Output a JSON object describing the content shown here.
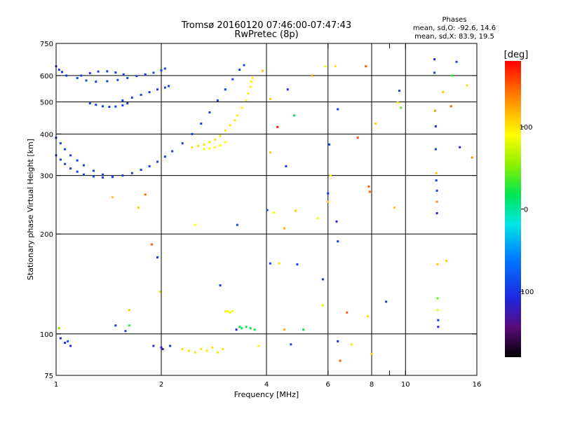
{
  "chart_data": {
    "type": "scatter",
    "title": "Tromsø 20160120 07:46:00-07:47:43",
    "subtitle": "RwPretec (8p)",
    "xlabel": "Frequency [MHz]",
    "ylabel": "Stationary phase Virtual Height [km]",
    "x_scale": "log",
    "y_scale": "log",
    "xlim": [
      1,
      16
    ],
    "ylim": [
      75,
      750
    ],
    "x_ticks": [
      {
        "value": 1,
        "label": "1"
      },
      {
        "value": 2,
        "label": "2"
      },
      {
        "value": 4,
        "label": "4"
      },
      {
        "value": 6,
        "label": "6"
      },
      {
        "value": 8,
        "label": "8"
      },
      {
        "value": 9,
        "label": ""
      },
      {
        "value": 10,
        "label": "10"
      },
      {
        "value": 16,
        "label": "16"
      }
    ],
    "y_ticks": [
      {
        "value": 75,
        "label": "75"
      },
      {
        "value": 100,
        "label": "100"
      },
      {
        "value": 200,
        "label": "200"
      },
      {
        "value": 300,
        "label": "300"
      },
      {
        "value": 400,
        "label": "400"
      },
      {
        "value": 500,
        "label": "500"
      },
      {
        "value": 600,
        "label": "600"
      },
      {
        "value": 750,
        "label": "750"
      }
    ],
    "x_grid": [
      2,
      4,
      6,
      8,
      10
    ],
    "y_grid": [
      100,
      200,
      300,
      400,
      500,
      600
    ],
    "stats": {
      "heading": "Phases",
      "line1": "mean, sd,O: -92.6, 14.6",
      "line2": "mean, sd,X:  83.9, 19.5"
    },
    "colorbar": {
      "unit": "[deg]",
      "range": [
        -180,
        180
      ],
      "ticks": [
        {
          "value": 100,
          "label": "100"
        },
        {
          "value": 0,
          "label": "0"
        },
        {
          "value": -100,
          "label": "-100"
        }
      ]
    },
    "traces": [
      {
        "phase": -95,
        "x": [
          1.0,
          1.03,
          1.06,
          1.1,
          1.15,
          1.2,
          1.28,
          1.36,
          1.45,
          1.55,
          1.65,
          1.75,
          1.85,
          1.95,
          2.05,
          2.15,
          2.3,
          2.45,
          2.6,
          2.75,
          2.9,
          3.05,
          3.2,
          3.35,
          3.45
        ],
        "y": [
          390,
          375,
          360,
          345,
          333,
          322,
          310,
          302,
          298,
          300,
          305,
          312,
          320,
          330,
          342,
          355,
          375,
          400,
          430,
          465,
          505,
          545,
          585,
          625,
          645
        ]
      },
      {
        "phase": -95,
        "x": [
          1.0,
          1.03,
          1.06,
          1.1,
          1.15,
          1.2,
          1.28,
          1.36,
          1.45
        ],
        "y": [
          345,
          335,
          325,
          315,
          308,
          302,
          298,
          296,
          297
        ]
      },
      {
        "phase": -100,
        "x": [
          1.0,
          1.02,
          1.04,
          1.07
        ],
        "y": [
          640,
          625,
          615,
          600
        ]
      },
      {
        "phase": -90,
        "x": [
          1.15,
          1.22,
          1.3,
          1.4,
          1.5,
          1.6,
          1.7,
          1.8,
          1.9,
          2.0,
          2.05
        ],
        "y": [
          590,
          580,
          575,
          577,
          582,
          590,
          598,
          605,
          612,
          622,
          630
        ]
      },
      {
        "phase": -95,
        "x": [
          1.18,
          1.25,
          1.32,
          1.4,
          1.48,
          1.56
        ],
        "y": [
          600,
          610,
          617,
          618,
          613,
          605
        ]
      },
      {
        "phase": -95,
        "x": [
          1.25,
          1.3,
          1.36,
          1.42,
          1.48,
          1.55,
          1.6
        ],
        "y": [
          495,
          490,
          485,
          483,
          484,
          488,
          495
        ]
      },
      {
        "phase": -95,
        "x": [
          1.55,
          1.65,
          1.75,
          1.85,
          1.95,
          2.05,
          2.1
        ],
        "y": [
          505,
          515,
          525,
          535,
          545,
          552,
          558
        ]
      },
      {
        "phase": 100,
        "x": [
          2.45,
          2.55,
          2.65,
          2.75,
          2.85,
          2.95,
          3.05,
          3.15,
          3.25
        ],
        "y": [
          365,
          368,
          372,
          378,
          385,
          395,
          410,
          425,
          440
        ]
      },
      {
        "phase": 95,
        "x": [
          3.3,
          3.4,
          3.5,
          3.55,
          3.6,
          3.62,
          3.65
        ],
        "y": [
          455,
          480,
          505,
          530,
          555,
          575,
          590
        ]
      },
      {
        "phase": 90,
        "x": [
          2.65,
          2.75,
          2.85,
          2.95,
          3.05
        ],
        "y": [
          360,
          362,
          365,
          370,
          378
        ]
      },
      {
        "phase": 100,
        "x": [
          2.3,
          2.4,
          2.5,
          2.6,
          2.7,
          2.8,
          2.9,
          3.0
        ],
        "y": [
          90,
          89,
          88,
          90,
          89,
          91,
          88,
          90
        ]
      },
      {
        "phase": 85,
        "x": [
          3.05,
          3.1,
          3.15,
          3.2
        ],
        "y": [
          117,
          117,
          116,
          117
        ]
      },
      {
        "phase": 20,
        "x": [
          3.4,
          3.5,
          3.6,
          3.7
        ],
        "y": [
          104,
          105,
          104,
          103
        ]
      }
    ],
    "points": [
      {
        "x": 1.03,
        "y": 97,
        "phase": -110
      },
      {
        "x": 1.06,
        "y": 94,
        "phase": -100
      },
      {
        "x": 1.1,
        "y": 92,
        "phase": -105
      },
      {
        "x": 1.02,
        "y": 104,
        "phase": 50
      },
      {
        "x": 1.08,
        "y": 95,
        "phase": -90
      },
      {
        "x": 1.48,
        "y": 106,
        "phase": -100
      },
      {
        "x": 1.58,
        "y": 102,
        "phase": -95
      },
      {
        "x": 1.62,
        "y": 106,
        "phase": 30
      },
      {
        "x": 1.9,
        "y": 92,
        "phase": -110
      },
      {
        "x": 2.0,
        "y": 91,
        "phase": -110
      },
      {
        "x": 2.02,
        "y": 90,
        "phase": -120
      },
      {
        "x": 2.12,
        "y": 92,
        "phase": -100
      },
      {
        "x": 1.88,
        "y": 186,
        "phase": 150
      },
      {
        "x": 1.95,
        "y": 170,
        "phase": -95
      },
      {
        "x": 1.98,
        "y": 134,
        "phase": 100
      },
      {
        "x": 1.72,
        "y": 240,
        "phase": 110
      },
      {
        "x": 1.8,
        "y": 263,
        "phase": 140
      },
      {
        "x": 1.45,
        "y": 258,
        "phase": 110
      },
      {
        "x": 1.62,
        "y": 118,
        "phase": 110
      },
      {
        "x": 2.5,
        "y": 213,
        "phase": 90
      },
      {
        "x": 2.95,
        "y": 140,
        "phase": -95
      },
      {
        "x": 3.3,
        "y": 213,
        "phase": -95
      },
      {
        "x": 3.28,
        "y": 103,
        "phase": -110
      },
      {
        "x": 3.35,
        "y": 105,
        "phase": 20
      },
      {
        "x": 3.8,
        "y": 92,
        "phase": 95
      },
      {
        "x": 4.02,
        "y": 236,
        "phase": -100
      },
      {
        "x": 4.1,
        "y": 163,
        "phase": -95
      },
      {
        "x": 4.2,
        "y": 232,
        "phase": 90
      },
      {
        "x": 4.35,
        "y": 163,
        "phase": 100
      },
      {
        "x": 4.5,
        "y": 208,
        "phase": 120
      },
      {
        "x": 4.5,
        "y": 103,
        "phase": 120
      },
      {
        "x": 4.7,
        "y": 93,
        "phase": -95
      },
      {
        "x": 4.9,
        "y": 162,
        "phase": -100
      },
      {
        "x": 5.1,
        "y": 103,
        "phase": 20
      },
      {
        "x": 4.85,
        "y": 235,
        "phase": 110
      },
      {
        "x": 5.6,
        "y": 223,
        "phase": 90
      },
      {
        "x": 5.8,
        "y": 146,
        "phase": -100
      },
      {
        "x": 5.8,
        "y": 122,
        "phase": 80
      },
      {
        "x": 6.0,
        "y": 265,
        "phase": -100
      },
      {
        "x": 6.05,
        "y": 372,
        "phase": -95
      },
      {
        "x": 6.35,
        "y": 218,
        "phase": -110
      },
      {
        "x": 6.4,
        "y": 190,
        "phase": -100
      },
      {
        "x": 6.4,
        "y": 95,
        "phase": -110
      },
      {
        "x": 6.5,
        "y": 83,
        "phase": 150
      },
      {
        "x": 6.8,
        "y": 116,
        "phase": 150
      },
      {
        "x": 7.0,
        "y": 93,
        "phase": 100
      },
      {
        "x": 7.8,
        "y": 113,
        "phase": 100
      },
      {
        "x": 7.85,
        "y": 278,
        "phase": 150
      },
      {
        "x": 7.9,
        "y": 268,
        "phase": 150
      },
      {
        "x": 8.0,
        "y": 87,
        "phase": 110
      },
      {
        "x": 8.8,
        "y": 125,
        "phase": -100
      },
      {
        "x": 9.3,
        "y": 240,
        "phase": 110
      },
      {
        "x": 9.5,
        "y": 497,
        "phase": 90
      },
      {
        "x": 9.7,
        "y": 480,
        "phase": 40
      },
      {
        "x": 12.1,
        "y": 672,
        "phase": -110
      },
      {
        "x": 12.1,
        "y": 612,
        "phase": -95
      },
      {
        "x": 12.15,
        "y": 470,
        "phase": 130
      },
      {
        "x": 12.2,
        "y": 422,
        "phase": -110
      },
      {
        "x": 12.2,
        "y": 360,
        "phase": -95
      },
      {
        "x": 12.25,
        "y": 305,
        "phase": 110
      },
      {
        "x": 12.25,
        "y": 290,
        "phase": -100
      },
      {
        "x": 12.3,
        "y": 270,
        "phase": -95
      },
      {
        "x": 12.3,
        "y": 250,
        "phase": 130
      },
      {
        "x": 12.3,
        "y": 231,
        "phase": -110
      },
      {
        "x": 12.35,
        "y": 162,
        "phase": 110
      },
      {
        "x": 12.35,
        "y": 128,
        "phase": 50
      },
      {
        "x": 12.35,
        "y": 118,
        "phase": 80
      },
      {
        "x": 12.4,
        "y": 105,
        "phase": -110
      },
      {
        "x": 12.4,
        "y": 110,
        "phase": -100
      },
      {
        "x": 12.8,
        "y": 535,
        "phase": 110
      },
      {
        "x": 13.5,
        "y": 485,
        "phase": 150
      },
      {
        "x": 13.1,
        "y": 166,
        "phase": 110
      },
      {
        "x": 14.0,
        "y": 660,
        "phase": -95
      },
      {
        "x": 14.3,
        "y": 365,
        "phase": -110
      },
      {
        "x": 15.0,
        "y": 560,
        "phase": 100
      },
      {
        "x": 15.5,
        "y": 340,
        "phase": 130
      },
      {
        "x": 13.6,
        "y": 600,
        "phase": 30
      },
      {
        "x": 5.4,
        "y": 600,
        "phase": 120
      },
      {
        "x": 5.9,
        "y": 640,
        "phase": 90
      },
      {
        "x": 6.3,
        "y": 640,
        "phase": 100
      },
      {
        "x": 7.7,
        "y": 640,
        "phase": 150
      },
      {
        "x": 6.4,
        "y": 475,
        "phase": -100
      },
      {
        "x": 7.3,
        "y": 390,
        "phase": 150
      },
      {
        "x": 8.2,
        "y": 430,
        "phase": 110
      },
      {
        "x": 9.6,
        "y": 540,
        "phase": -95
      },
      {
        "x": 4.3,
        "y": 420,
        "phase": 170
      },
      {
        "x": 4.8,
        "y": 455,
        "phase": 20
      },
      {
        "x": 4.6,
        "y": 545,
        "phase": -100
      },
      {
        "x": 4.1,
        "y": 510,
        "phase": 110
      },
      {
        "x": 3.9,
        "y": 620,
        "phase": 110
      },
      {
        "x": 4.55,
        "y": 320,
        "phase": -95
      },
      {
        "x": 4.1,
        "y": 352,
        "phase": 110
      },
      {
        "x": 6.0,
        "y": 250,
        "phase": 110
      },
      {
        "x": 6.1,
        "y": 300,
        "phase": 90
      }
    ]
  }
}
